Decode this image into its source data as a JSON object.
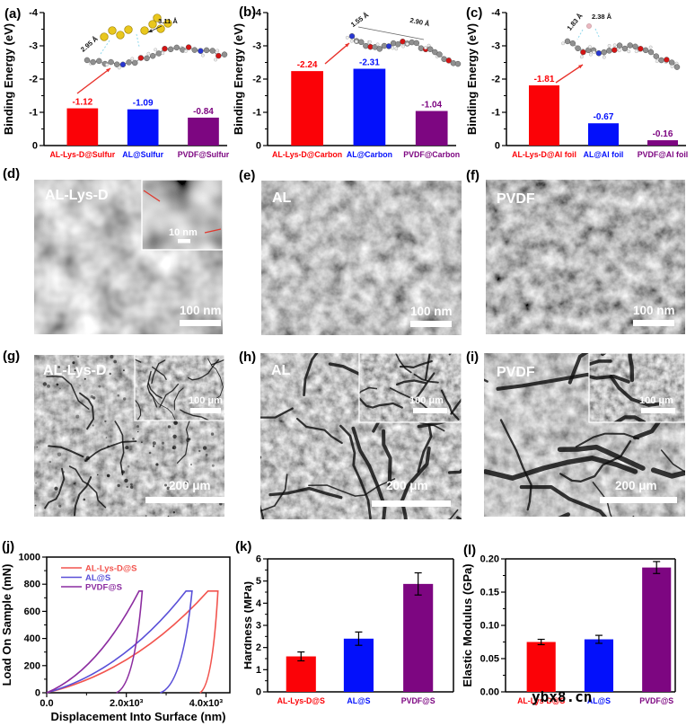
{
  "figure": {
    "background": "#ffffff"
  },
  "watermark": "ybx8.cn",
  "palette": {
    "red": "#fb0207",
    "blue": "#0310fb",
    "purple": "#7d0681",
    "line_red": "#f2544e",
    "line_blue": "#5a50d8",
    "line_purple": "#8c2da0",
    "arrow_red": "#e8312a",
    "sulfur_yellow": "#e9c71d"
  },
  "chart_data": [
    {
      "id": "a",
      "tag": "(a)",
      "type": "bar",
      "ylabel": "Binding Energy (eV)",
      "ylim": [
        0,
        -4
      ],
      "yticks": [
        "0",
        "-1",
        "-2",
        "-3",
        "-4"
      ],
      "categories": [
        "AL-Lys-D@Sulfur",
        "AL@Sulfur",
        "PVDF@Sulfur"
      ],
      "values": [
        -1.12,
        -1.09,
        -0.84
      ],
      "value_labels": [
        "-1.12",
        "-1.09",
        "-0.84"
      ],
      "bar_colors": [
        "#fb0207",
        "#0310fb",
        "#7d0681"
      ],
      "annotations": [
        "2.95 Å",
        "3.11 Å"
      ]
    },
    {
      "id": "b",
      "tag": "(b)",
      "type": "bar",
      "ylabel": "Binding Energy (eV)",
      "ylim": [
        0,
        -4
      ],
      "yticks": [
        "0",
        "-1",
        "-2",
        "-3",
        "-4"
      ],
      "categories": [
        "AL-Lys-D@Carbon",
        "AL@Carbon",
        "PVDF@Carbon"
      ],
      "values": [
        -2.24,
        -2.31,
        -1.04
      ],
      "value_labels": [
        "-2.24",
        "-2.31",
        "-1.04"
      ],
      "bar_colors": [
        "#fb0207",
        "#0310fb",
        "#7d0681"
      ],
      "annotations": [
        "1.55 Å",
        "2.90 Å"
      ]
    },
    {
      "id": "c",
      "tag": "(c)",
      "type": "bar",
      "ylabel": "Binding Energy (eV)",
      "ylim": [
        0,
        -4
      ],
      "yticks": [
        "0",
        "-1",
        "-2",
        "-3",
        "-4"
      ],
      "categories": [
        "AL-Lys-D@Al foil",
        "AL@Al foil",
        "PVDF@Al foil"
      ],
      "values": [
        -1.81,
        -0.67,
        -0.16
      ],
      "value_labels": [
        "-1.81",
        "-0.67",
        "-0.16"
      ],
      "bar_colors": [
        "#fb0207",
        "#0310fb",
        "#7d0681"
      ],
      "annotations": [
        "1.83 Å",
        "2.38 Å"
      ]
    },
    {
      "id": "j",
      "tag": "(j)",
      "type": "line",
      "xlabel": "Displacement Into Surface (nm)",
      "ylabel": "Load On Sample (mN)",
      "xlim": [
        0,
        4600
      ],
      "ylim": [
        0,
        1000
      ],
      "xticks": [
        {
          "value": 0,
          "label": "0.0"
        },
        {
          "value": 2000,
          "label": "2.0x10³"
        },
        {
          "value": 4000,
          "label": "4.0x10³"
        }
      ],
      "yticks": [
        "0",
        "200",
        "400",
        "600",
        "800",
        "1000"
      ],
      "legend_position": "top-left",
      "series": [
        {
          "name": "AL-Lys-D@S",
          "color": "#f2544e",
          "max_load_mN": 750,
          "peak_displacement_nm": 4300,
          "residual_displacement_nm": 3850
        },
        {
          "name": "AL@S",
          "color": "#5a50d8",
          "max_load_mN": 750,
          "peak_displacement_nm": 3650,
          "residual_displacement_nm": 2850
        },
        {
          "name": "PVDF@S",
          "color": "#8c2da0",
          "max_load_mN": 750,
          "peak_displacement_nm": 2400,
          "residual_displacement_nm": 1750
        }
      ]
    },
    {
      "id": "k",
      "tag": "(k)",
      "type": "bar",
      "ylabel": "Hardness (MPa)",
      "ylim": [
        0,
        6
      ],
      "yticks": [
        "0",
        "1",
        "2",
        "3",
        "4",
        "5",
        "6"
      ],
      "categories": [
        "AL-Lys-D@S",
        "AL@S",
        "PVDF@S"
      ],
      "values": [
        1.6,
        2.4,
        4.87
      ],
      "errors": [
        0.2,
        0.3,
        0.5
      ],
      "bar_colors": [
        "#fb0207",
        "#0310fb",
        "#7d0681"
      ]
    },
    {
      "id": "l",
      "tag": "(l)",
      "type": "bar",
      "ylabel": "Elastic Modulus (GPa)",
      "ylim": [
        0,
        0.2
      ],
      "yticks": [
        "0.00",
        "0.05",
        "0.10",
        "0.15",
        "0.20"
      ],
      "categories": [
        "AL-Lys-D@S",
        "AL@S",
        "PVDF@S"
      ],
      "values": [
        0.075,
        0.079,
        0.187
      ],
      "errors": [
        0.004,
        0.006,
        0.009
      ],
      "bar_colors": [
        "#fb0207",
        "#0310fb",
        "#7d0681"
      ]
    }
  ],
  "micrographs": [
    {
      "id": "d",
      "tag": "(d)",
      "label": "AL-Lys-D",
      "scale": "100 nm",
      "inset_scale": "10 nm"
    },
    {
      "id": "e",
      "tag": "(e)",
      "label": "AL",
      "scale": "100 nm"
    },
    {
      "id": "f",
      "tag": "(f)",
      "label": "PVDF",
      "scale": "100 nm"
    },
    {
      "id": "g",
      "tag": "(g)",
      "label": "AL-Lys-D",
      "scale": "200 μm",
      "inset_scale": "100 μm"
    },
    {
      "id": "h",
      "tag": "(h)",
      "label": "AL",
      "scale": "200 μm",
      "inset_scale": "100 μm"
    },
    {
      "id": "i",
      "tag": "(i)",
      "label": "PVDF",
      "scale": "200 μm",
      "inset_scale": "100 μm"
    }
  ]
}
